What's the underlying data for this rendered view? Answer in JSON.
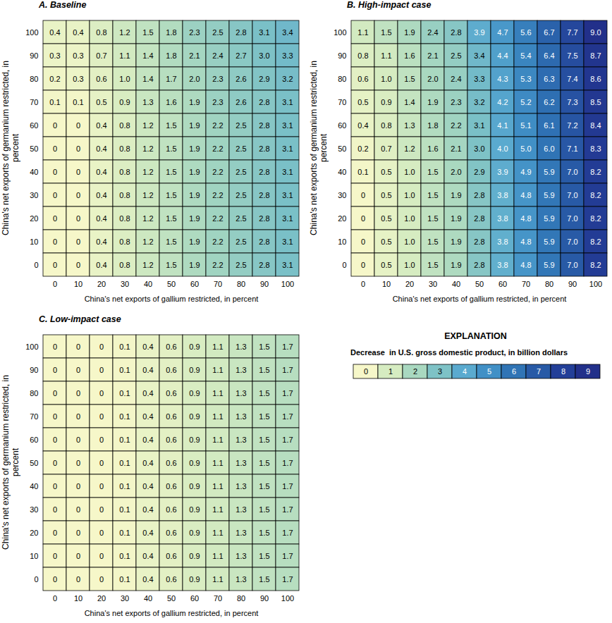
{
  "chart_data": [
    {
      "type": "heatmap",
      "title": "A. Baseline",
      "x_label": "China's net exports of gallium restricted, in percent",
      "y_label": "China's net exports of germanium restricted, in percent",
      "data_labels": true,
      "x": [
        0,
        10,
        20,
        30,
        40,
        50,
        60,
        70,
        80,
        90,
        100
      ],
      "y": [
        100,
        90,
        80,
        70,
        60,
        50,
        40,
        30,
        20,
        10,
        0
      ],
      "values": [
        [
          0.4,
          0.4,
          0.8,
          1.2,
          1.5,
          1.8,
          2.3,
          2.5,
          2.8,
          3.1,
          3.4
        ],
        [
          0.3,
          0.3,
          0.7,
          1.1,
          1.4,
          1.8,
          2.1,
          2.4,
          2.7,
          3.0,
          3.3
        ],
        [
          0.2,
          0.3,
          0.6,
          1.0,
          1.4,
          1.7,
          2.0,
          2.3,
          2.6,
          2.9,
          3.2
        ],
        [
          0.1,
          0.1,
          0.5,
          0.9,
          1.3,
          1.6,
          1.9,
          2.3,
          2.6,
          2.8,
          3.1
        ],
        [
          0,
          0,
          0.4,
          0.8,
          1.2,
          1.5,
          1.9,
          2.2,
          2.5,
          2.8,
          3.1
        ],
        [
          0,
          0,
          0.4,
          0.8,
          1.2,
          1.5,
          1.9,
          2.2,
          2.5,
          2.8,
          3.1
        ],
        [
          0,
          0,
          0.4,
          0.8,
          1.2,
          1.5,
          1.9,
          2.2,
          2.5,
          2.8,
          3.1
        ],
        [
          0,
          0,
          0.4,
          0.8,
          1.2,
          1.5,
          1.9,
          2.2,
          2.5,
          2.8,
          3.1
        ],
        [
          0,
          0,
          0.4,
          0.8,
          1.2,
          1.5,
          1.9,
          2.2,
          2.5,
          2.8,
          3.1
        ],
        [
          0,
          0,
          0.4,
          0.8,
          1.2,
          1.5,
          1.9,
          2.2,
          2.5,
          2.8,
          3.1
        ],
        [
          0,
          0,
          0.4,
          0.8,
          1.2,
          1.5,
          1.9,
          2.2,
          2.5,
          2.8,
          3.1
        ]
      ],
      "value_labels": [
        [
          "0.4",
          "0.4",
          "0.8",
          "1.2",
          "1.5",
          "1.8",
          "2.3",
          "2.5",
          "2.8",
          "3.1",
          "3.4"
        ],
        [
          "0.3",
          "0.3",
          "0.7",
          "1.1",
          "1.4",
          "1.8",
          "2.1",
          "2.4",
          "2.7",
          "3.0",
          "3.3"
        ],
        [
          "0.2",
          "0.3",
          "0.6",
          "1.0",
          "1.4",
          "1.7",
          "2.0",
          "2.3",
          "2.6",
          "2.9",
          "3.2"
        ],
        [
          "0.1",
          "0.1",
          "0.5",
          "0.9",
          "1.3",
          "1.6",
          "1.9",
          "2.3",
          "2.6",
          "2.8",
          "3.1"
        ],
        [
          "0",
          "0",
          "0.4",
          "0.8",
          "1.2",
          "1.5",
          "1.9",
          "2.2",
          "2.5",
          "2.8",
          "3.1"
        ],
        [
          "0",
          "0",
          "0.4",
          "0.8",
          "1.2",
          "1.5",
          "1.9",
          "2.2",
          "2.5",
          "2.8",
          "3.1"
        ],
        [
          "0",
          "0",
          "0.4",
          "0.8",
          "1.2",
          "1.5",
          "1.9",
          "2.2",
          "2.5",
          "2.8",
          "3.1"
        ],
        [
          "0",
          "0",
          "0.4",
          "0.8",
          "1.2",
          "1.5",
          "1.9",
          "2.2",
          "2.5",
          "2.8",
          "3.1"
        ],
        [
          "0",
          "0",
          "0.4",
          "0.8",
          "1.2",
          "1.5",
          "1.9",
          "2.2",
          "2.5",
          "2.8",
          "3.1"
        ],
        [
          "0",
          "0",
          "0.4",
          "0.8",
          "1.2",
          "1.5",
          "1.9",
          "2.2",
          "2.5",
          "2.8",
          "3.1"
        ],
        [
          "0",
          "0",
          "0.4",
          "0.8",
          "1.2",
          "1.5",
          "1.9",
          "2.2",
          "2.5",
          "2.8",
          "3.1"
        ]
      ]
    },
    {
      "type": "heatmap",
      "title": "B. High-impact case",
      "x_label": "China's net exports of gallium restricted, in percent",
      "y_label": "China's net exports of germanium restricted, in percent",
      "data_labels": true,
      "x": [
        0,
        10,
        20,
        30,
        40,
        50,
        60,
        70,
        80,
        90,
        100
      ],
      "y": [
        100,
        90,
        80,
        70,
        60,
        50,
        40,
        30,
        20,
        10,
        0
      ],
      "values": [
        [
          1.1,
          1.5,
          1.9,
          2.4,
          2.8,
          3.9,
          4.7,
          5.6,
          6.7,
          7.7,
          9.0
        ],
        [
          0.8,
          1.1,
          1.6,
          2.1,
          2.5,
          3.4,
          4.4,
          5.4,
          6.4,
          7.5,
          8.7
        ],
        [
          0.6,
          1.0,
          1.5,
          2.0,
          2.4,
          3.3,
          4.3,
          5.3,
          6.3,
          7.4,
          8.6
        ],
        [
          0.5,
          0.9,
          1.4,
          1.9,
          2.3,
          3.2,
          4.2,
          5.2,
          6.2,
          7.3,
          8.5
        ],
        [
          0.4,
          0.8,
          1.3,
          1.8,
          2.2,
          3.1,
          4.1,
          5.1,
          6.1,
          7.2,
          8.4
        ],
        [
          0.2,
          0.7,
          1.2,
          1.6,
          2.1,
          3.0,
          4.0,
          5.0,
          6.0,
          7.1,
          8.3
        ],
        [
          0.1,
          0.5,
          1.0,
          1.5,
          2.0,
          2.9,
          3.9,
          4.9,
          5.9,
          7.0,
          8.2
        ],
        [
          0,
          0.5,
          1.0,
          1.5,
          1.9,
          2.8,
          3.8,
          4.8,
          5.9,
          7.0,
          8.2
        ],
        [
          0,
          0.5,
          1.0,
          1.5,
          1.9,
          2.8,
          3.8,
          4.8,
          5.9,
          7.0,
          8.2
        ],
        [
          0,
          0.5,
          1.0,
          1.5,
          1.9,
          2.8,
          3.8,
          4.8,
          5.9,
          7.0,
          8.2
        ],
        [
          0,
          0.5,
          1.0,
          1.5,
          1.9,
          2.8,
          3.8,
          4.8,
          5.9,
          7.0,
          8.2
        ]
      ],
      "value_labels": [
        [
          "1.1",
          "1.5",
          "1.9",
          "2.4",
          "2.8",
          "3.9",
          "4.7",
          "5.6",
          "6.7",
          "7.7",
          "9.0"
        ],
        [
          "0.8",
          "1.1",
          "1.6",
          "2.1",
          "2.5",
          "3.4",
          "4.4",
          "5.4",
          "6.4",
          "7.5",
          "8.7"
        ],
        [
          "0.6",
          "1.0",
          "1.5",
          "2.0",
          "2.4",
          "3.3",
          "4.3",
          "5.3",
          "6.3",
          "7.4",
          "8.6"
        ],
        [
          "0.5",
          "0.9",
          "1.4",
          "1.9",
          "2.3",
          "3.2",
          "4.2",
          "5.2",
          "6.2",
          "7.3",
          "8.5"
        ],
        [
          "0.4",
          "0.8",
          "1.3",
          "1.8",
          "2.2",
          "3.1",
          "4.1",
          "5.1",
          "6.1",
          "7.2",
          "8.4"
        ],
        [
          "0.2",
          "0.7",
          "1.2",
          "1.6",
          "2.1",
          "3.0",
          "4.0",
          "5.0",
          "6.0",
          "7.1",
          "8.3"
        ],
        [
          "0.1",
          "0.5",
          "1.0",
          "1.5",
          "2.0",
          "2.9",
          "3.9",
          "4.9",
          "5.9",
          "7.0",
          "8.2"
        ],
        [
          "0",
          "0.5",
          "1.0",
          "1.5",
          "1.9",
          "2.8",
          "3.8",
          "4.8",
          "5.9",
          "7.0",
          "8.2"
        ],
        [
          "0",
          "0.5",
          "1.0",
          "1.5",
          "1.9",
          "2.8",
          "3.8",
          "4.8",
          "5.9",
          "7.0",
          "8.2"
        ],
        [
          "0",
          "0.5",
          "1.0",
          "1.5",
          "1.9",
          "2.8",
          "3.8",
          "4.8",
          "5.9",
          "7.0",
          "8.2"
        ],
        [
          "0",
          "0.5",
          "1.0",
          "1.5",
          "1.9",
          "2.8",
          "3.8",
          "4.8",
          "5.9",
          "7.0",
          "8.2"
        ]
      ]
    },
    {
      "type": "heatmap",
      "title": "C. Low-impact case",
      "x_label": "China's net exports of gallium restricted, in percent",
      "y_label": "China's net exports of germanium restricted, in percent",
      "data_labels": true,
      "x": [
        0,
        10,
        20,
        30,
        40,
        50,
        60,
        70,
        80,
        90,
        100
      ],
      "y": [
        100,
        90,
        80,
        70,
        60,
        50,
        40,
        30,
        20,
        10,
        0
      ],
      "values": [
        [
          0,
          0,
          0,
          0.1,
          0.4,
          0.6,
          0.9,
          1.1,
          1.3,
          1.5,
          1.7
        ],
        [
          0,
          0,
          0,
          0.1,
          0.4,
          0.6,
          0.9,
          1.1,
          1.3,
          1.5,
          1.7
        ],
        [
          0,
          0,
          0,
          0.1,
          0.4,
          0.6,
          0.9,
          1.1,
          1.3,
          1.5,
          1.7
        ],
        [
          0,
          0,
          0,
          0.1,
          0.4,
          0.6,
          0.9,
          1.1,
          1.3,
          1.5,
          1.7
        ],
        [
          0,
          0,
          0,
          0.1,
          0.4,
          0.6,
          0.9,
          1.1,
          1.3,
          1.5,
          1.7
        ],
        [
          0,
          0,
          0,
          0.1,
          0.4,
          0.6,
          0.9,
          1.1,
          1.3,
          1.5,
          1.7
        ],
        [
          0,
          0,
          0,
          0.1,
          0.4,
          0.6,
          0.9,
          1.1,
          1.3,
          1.5,
          1.7
        ],
        [
          0,
          0,
          0,
          0.1,
          0.4,
          0.6,
          0.9,
          1.1,
          1.3,
          1.5,
          1.7
        ],
        [
          0,
          0,
          0,
          0.1,
          0.4,
          0.6,
          0.9,
          1.1,
          1.3,
          1.5,
          1.7
        ],
        [
          0,
          0,
          0,
          0.1,
          0.4,
          0.6,
          0.9,
          1.1,
          1.3,
          1.5,
          1.7
        ],
        [
          0,
          0,
          0,
          0.1,
          0.4,
          0.6,
          0.9,
          1.1,
          1.3,
          1.5,
          1.7
        ]
      ],
      "value_labels": [
        [
          "0",
          "0",
          "0",
          "0.1",
          "0.4",
          "0.6",
          "0.9",
          "1.1",
          "1.3",
          "1.5",
          "1.7"
        ],
        [
          "0",
          "0",
          "0",
          "0.1",
          "0.4",
          "0.6",
          "0.9",
          "1.1",
          "1.3",
          "1.5",
          "1.7"
        ],
        [
          "0",
          "0",
          "0",
          "0.1",
          "0.4",
          "0.6",
          "0.9",
          "1.1",
          "1.3",
          "1.5",
          "1.7"
        ],
        [
          "0",
          "0",
          "0",
          "0.1",
          "0.4",
          "0.6",
          "0.9",
          "1.1",
          "1.3",
          "1.5",
          "1.7"
        ],
        [
          "0",
          "0",
          "0",
          "0.1",
          "0.4",
          "0.6",
          "0.9",
          "1.1",
          "1.3",
          "1.5",
          "1.7"
        ],
        [
          "0",
          "0",
          "0",
          "0.1",
          "0.4",
          "0.6",
          "0.9",
          "1.1",
          "1.3",
          "1.5",
          "1.7"
        ],
        [
          "0",
          "0",
          "0",
          "0.1",
          "0.4",
          "0.6",
          "0.9",
          "1.1",
          "1.3",
          "1.5",
          "1.7"
        ],
        [
          "0",
          "0",
          "0",
          "0.1",
          "0.4",
          "0.6",
          "0.9",
          "1.1",
          "1.3",
          "1.5",
          "1.7"
        ],
        [
          "0",
          "0",
          "0",
          "0.1",
          "0.4",
          "0.6",
          "0.9",
          "1.1",
          "1.3",
          "1.5",
          "1.7"
        ],
        [
          "0",
          "0",
          "0",
          "0.1",
          "0.4",
          "0.6",
          "0.9",
          "1.1",
          "1.3",
          "1.5",
          "1.7"
        ],
        [
          "0",
          "0",
          "0",
          "0.1",
          "0.4",
          "0.6",
          "0.9",
          "1.1",
          "1.3",
          "1.5",
          "1.7"
        ]
      ]
    }
  ],
  "colorbar": {
    "title": "EXPLANATION",
    "label": "Decrease  in U.S. gross domestic product, in billion dollars",
    "range": [
      0,
      9
    ],
    "ticks": [
      0,
      1,
      2,
      3,
      4,
      5,
      6,
      7,
      8,
      9
    ],
    "colors": [
      "#f6f7c9",
      "#d6ecc1",
      "#a9d8c0",
      "#7ec2c6",
      "#5aaacf",
      "#4190c6",
      "#3074b5",
      "#285aa6",
      "#233f98",
      "#22308a"
    ]
  }
}
